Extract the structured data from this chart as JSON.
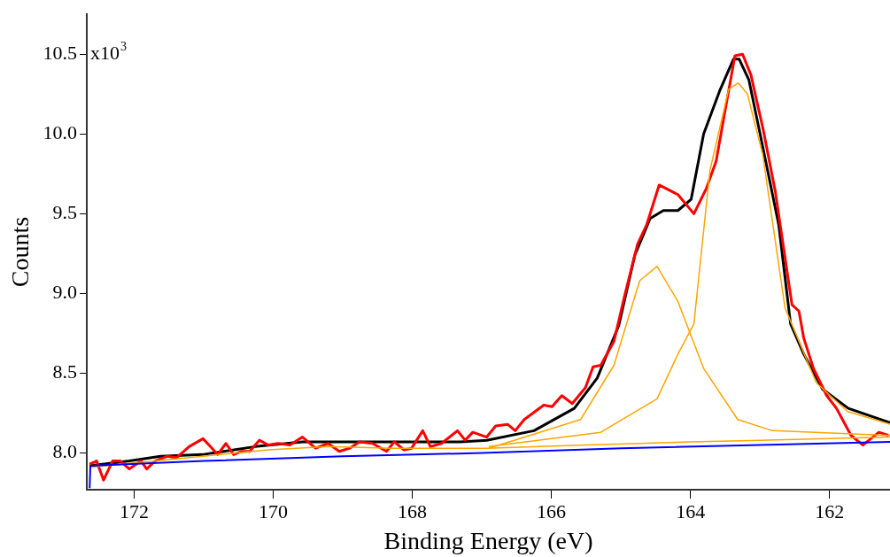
{
  "chart_data": {
    "type": "line",
    "xlabel": "Binding Energy (eV)",
    "ylabel": "Counts",
    "xlim": [
      172.68,
      161.13
    ],
    "ylim": [
      7.77,
      10.75
    ],
    "xticks": [
      172,
      170,
      168,
      166,
      164,
      162
    ],
    "yticks": [
      {
        "value": 8,
        "label": "8.0"
      },
      {
        "value": 8.5,
        "label": "8.5"
      },
      {
        "value": 9,
        "label": "9.0"
      },
      {
        "value": 9.5,
        "label": "9.5"
      },
      {
        "value": 10,
        "label": "10.0"
      },
      {
        "value": 10.5,
        "label": "10.5"
      }
    ],
    "annotations": [
      "x10$^{3}$"
    ],
    "grid": false,
    "legend": false,
    "marker": "none",
    "line_style": "solid",
    "series": [
      {
        "color": "#0000ff",
        "x": [
          172.64,
          172.63,
          171,
          169,
          167,
          165,
          163,
          161.13
        ],
        "values": [
          7.78,
          7.92,
          7.95,
          7.98,
          8.0,
          8.03,
          8.05,
          8.07
        ]
      },
      {
        "color": "#ffa500",
        "x": [
          172.64,
          171.01,
          170.07,
          169.21,
          168.3,
          166.93,
          165.5,
          164,
          163,
          162,
          161.13
        ],
        "values": [
          7.91,
          7.98,
          8.02,
          8.04,
          8.03,
          8.03,
          8.05,
          8.07,
          8.08,
          8.09,
          8.1
        ]
      },
      {
        "color": "#ffa500",
        "x": [
          166.9,
          165.58,
          165.1,
          164.73,
          164.48,
          164.18,
          163.81,
          163.32,
          162.82,
          161.13
        ],
        "values": [
          8.03,
          8.21,
          8.55,
          9.08,
          9.17,
          8.95,
          8.53,
          8.21,
          8.14,
          8.11
        ]
      },
      {
        "color": "#ffa500",
        "x": [
          166.9,
          165.29,
          164.48,
          164.18,
          163.95,
          163.72,
          163.45,
          163.31,
          163.18,
          162.96,
          162.64,
          162.19,
          161.74,
          161.13
        ],
        "values": [
          8.04,
          8.13,
          8.34,
          8.62,
          8.81,
          9.77,
          10.28,
          10.32,
          10.25,
          9.87,
          8.91,
          8.44,
          8.26,
          8.18
        ]
      },
      {
        "color": "#ff0000",
        "x": [
          172.64,
          172.54,
          172.44,
          172.31,
          172.2,
          172.07,
          171.9,
          171.82,
          171.7,
          171.52,
          171.39,
          171.21,
          171.01,
          170.88,
          170.8,
          170.68,
          170.57,
          170.46,
          170.34,
          170.2,
          170.07,
          169.93,
          169.76,
          169.58,
          169.39,
          169.21,
          169.05,
          168.9,
          168.76,
          168.57,
          168.37,
          168.26,
          168.12,
          168.01,
          167.85,
          167.74,
          167.58,
          167.35,
          167.24,
          167.13,
          166.93,
          166.8,
          166.63,
          166.52,
          166.39,
          166.11,
          165.99,
          165.85,
          165.7,
          165.51,
          165.4,
          165.29,
          165.1,
          164.95,
          164.76,
          164.63,
          164.45,
          164.18,
          163.95,
          163.77,
          163.63,
          163.5,
          163.36,
          163.25,
          163.13,
          162.95,
          162.78,
          162.54,
          162.44,
          162.37,
          162.23,
          162.04,
          161.9,
          161.69,
          161.52,
          161.29,
          161.15
        ],
        "values": [
          7.93,
          7.95,
          7.83,
          7.95,
          7.95,
          7.9,
          7.95,
          7.9,
          7.95,
          7.98,
          7.97,
          8.04,
          8.09,
          8.03,
          7.99,
          8.06,
          7.99,
          8.01,
          8.01,
          8.08,
          8.05,
          8.06,
          8.05,
          8.1,
          8.03,
          8.06,
          8.01,
          8.03,
          8.07,
          8.06,
          8.01,
          8.07,
          8.02,
          8.03,
          8.14,
          8.04,
          8.06,
          8.14,
          8.08,
          8.13,
          8.1,
          8.17,
          8.18,
          8.14,
          8.21,
          8.3,
          8.29,
          8.36,
          8.31,
          8.41,
          8.54,
          8.55,
          8.7,
          8.98,
          9.31,
          9.43,
          9.68,
          9.62,
          9.5,
          9.66,
          9.83,
          10.15,
          10.49,
          10.5,
          10.37,
          10.02,
          9.64,
          8.93,
          8.89,
          8.72,
          8.53,
          8.36,
          8.28,
          8.11,
          8.05,
          8.13,
          8.11
        ]
      },
      {
        "color": "#000000",
        "x": [
          172.64,
          172.07,
          171.62,
          171.02,
          170.26,
          169.58,
          168.67,
          167.31,
          166.93,
          166.25,
          165.67,
          165.34,
          165.03,
          164.8,
          164.58,
          164.39,
          164.18,
          163.99,
          163.81,
          163.58,
          163.38,
          163.3,
          163.16,
          162.96,
          162.73,
          162.56,
          162.37,
          162.1,
          161.73,
          161.13
        ],
        "values": [
          7.92,
          7.95,
          7.98,
          7.99,
          8.04,
          8.07,
          8.07,
          8.07,
          8.08,
          8.14,
          8.28,
          8.47,
          8.8,
          9.24,
          9.47,
          9.52,
          9.52,
          9.59,
          10.0,
          10.27,
          10.47,
          10.47,
          10.34,
          9.92,
          9.43,
          8.81,
          8.62,
          8.4,
          8.28,
          8.19
        ]
      }
    ]
  }
}
